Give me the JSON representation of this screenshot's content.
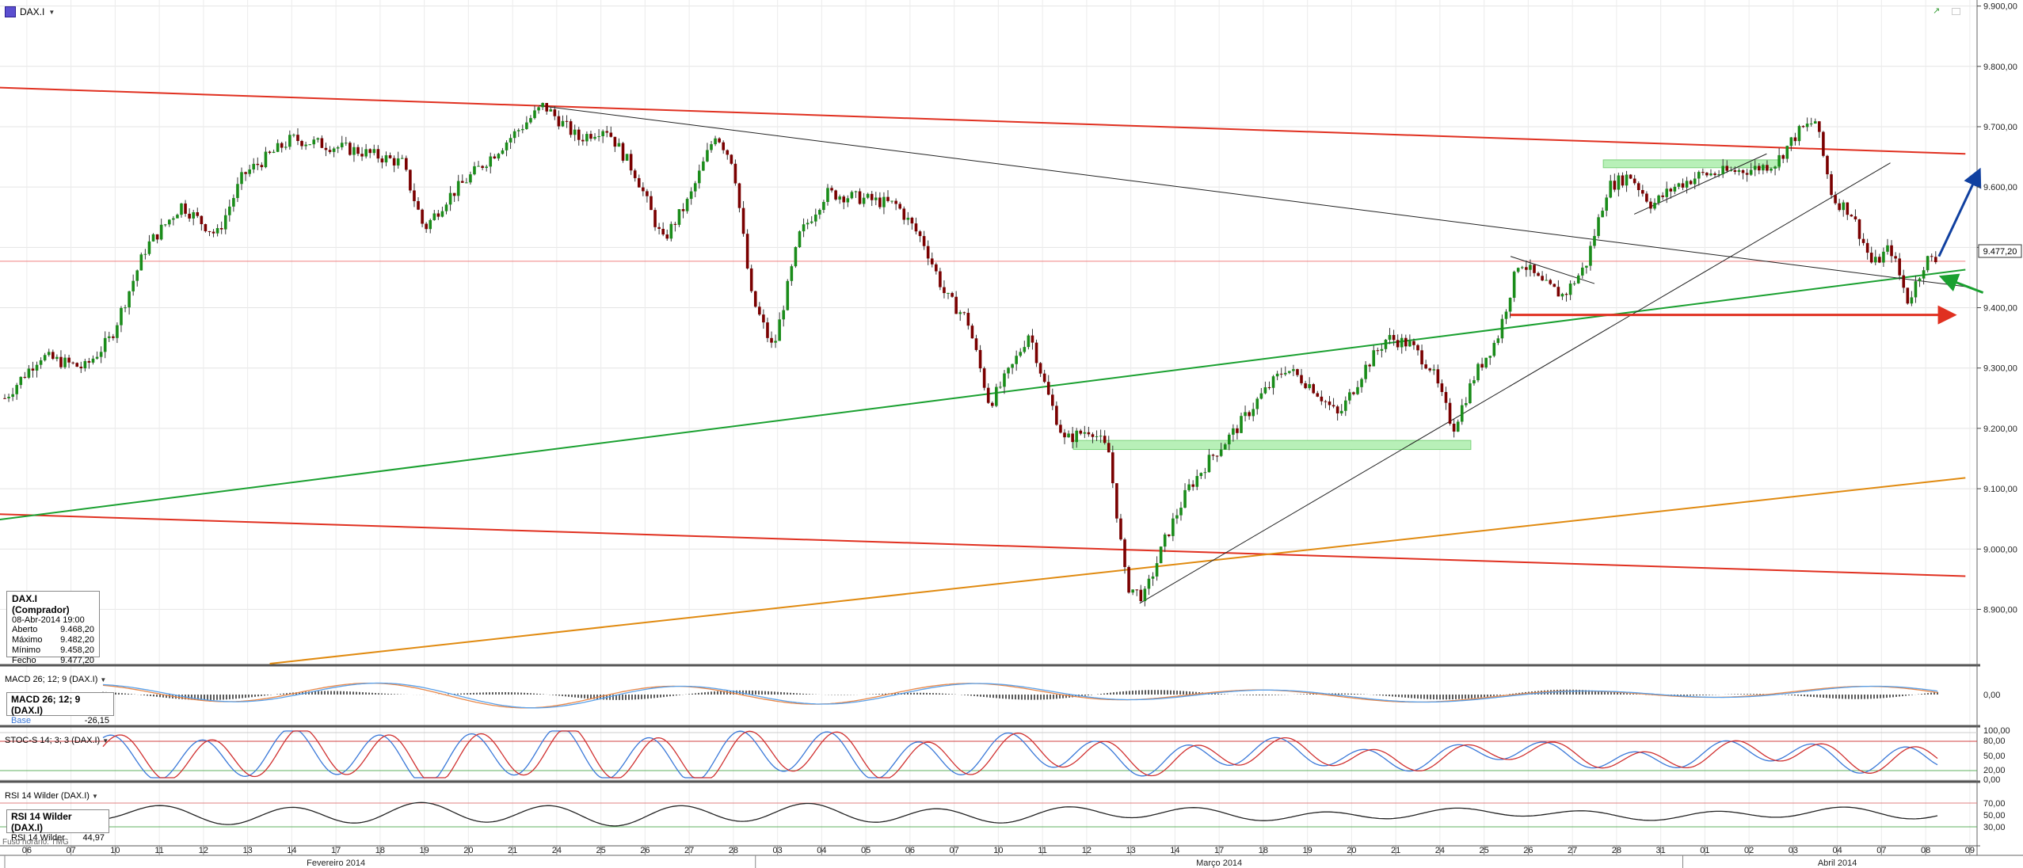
{
  "header": {
    "symbol": "DAX.I"
  },
  "info": {
    "title": "DAX.I (Comprador)",
    "datetime": "08-Abr-2014 19:00",
    "rows": [
      {
        "label": "Aberto",
        "value": "9.468,20"
      },
      {
        "label": "Máximo",
        "value": "9.482,20"
      },
      {
        "label": "Mínimo",
        "value": "9.458,20"
      },
      {
        "label": "Fecho",
        "value": "9.477,20"
      }
    ]
  },
  "timezone": "Fuso horário: TMG",
  "colors": {
    "up": "#1a8c1a",
    "down": "#7a0000",
    "red": "#e03020",
    "green": "#1aa030",
    "orange": "#e08a10",
    "blue": "#1040a0",
    "zone": "#b8f0b8"
  },
  "panes": {
    "macd": {
      "label": "MACD 26; 12; 9 (DAX.I)",
      "legend_title": "MACD 26; 12; 9 (DAX.I)",
      "legend_sub": "Base",
      "legend_value": "-26,15",
      "ticks": [
        "0,00"
      ]
    },
    "stoch": {
      "label": "STOC-S 14; 3; 3 (DAX.I)",
      "ticks": [
        "100,00",
        "80,00",
        "50,00",
        "20,00",
        "0,00"
      ]
    },
    "rsi": {
      "label": "RSI 14 Wilder (DAX.I)",
      "legend_title": "RSI 14 Wilder (DAX.I)",
      "legend_row_label": "RSI 14 Wilder",
      "legend_value": "44,97",
      "ticks": [
        "70,00",
        "50,00",
        "30,00"
      ]
    }
  },
  "chart_data": {
    "type": "candlestick",
    "title": "DAX.I",
    "interval": "hourly",
    "last_value": 9477.2,
    "last_value_label": "9.477,20",
    "ylim": [
      8810,
      9910
    ],
    "y_ticks": [
      8900,
      9000,
      9100,
      9200,
      9300,
      9400,
      9500,
      9600,
      9700,
      9800,
      9900
    ],
    "y_tick_labels": [
      "8.900,00",
      "9.000,00",
      "9.100,00",
      "9.200,00",
      "9.300,00",
      "9.400,00",
      "9.500,00",
      "9.600,00",
      "9.700,00",
      "9.800,00",
      "9.900,00"
    ],
    "x_labels": [
      "06",
      "07",
      "10",
      "11",
      "12",
      "13",
      "14",
      "17",
      "18",
      "19",
      "20",
      "21",
      "24",
      "25",
      "26",
      "27",
      "28",
      "03",
      "04",
      "05",
      "06",
      "07",
      "10",
      "11",
      "12",
      "13",
      "14",
      "17",
      "18",
      "19",
      "20",
      "21",
      "24",
      "25",
      "26",
      "27",
      "28",
      "31",
      "01",
      "02",
      "03",
      "04",
      "07",
      "08",
      "09"
    ],
    "months": [
      "Fevereiro 2014",
      "Março 2014",
      "Abril 2014"
    ],
    "path_anchors": [
      {
        "day": 0,
        "v": 9250
      },
      {
        "day": 0.8,
        "v": 9320
      },
      {
        "day": 1.8,
        "v": 9300
      },
      {
        "day": 2.4,
        "v": 9350
      },
      {
        "day": 3.2,
        "v": 9500
      },
      {
        "day": 4,
        "v": 9570
      },
      {
        "day": 4.8,
        "v": 9520
      },
      {
        "day": 5.4,
        "v": 9620
      },
      {
        "day": 6.5,
        "v": 9680
      },
      {
        "day": 8,
        "v": 9660
      },
      {
        "day": 9,
        "v": 9640
      },
      {
        "day": 9.5,
        "v": 9530
      },
      {
        "day": 10,
        "v": 9580
      },
      {
        "day": 11,
        "v": 9650
      },
      {
        "day": 12.2,
        "v": 9735
      },
      {
        "day": 13,
        "v": 9680
      },
      {
        "day": 13.6,
        "v": 9700
      },
      {
        "day": 14.3,
        "v": 9620
      },
      {
        "day": 14.9,
        "v": 9510
      },
      {
        "day": 15.5,
        "v": 9580
      },
      {
        "day": 16.1,
        "v": 9690
      },
      {
        "day": 16.5,
        "v": 9640
      },
      {
        "day": 16.9,
        "v": 9420
      },
      {
        "day": 17.4,
        "v": 9330
      },
      {
        "day": 18,
        "v": 9520
      },
      {
        "day": 18.6,
        "v": 9590
      },
      {
        "day": 19.5,
        "v": 9580
      },
      {
        "day": 20.2,
        "v": 9570
      },
      {
        "day": 20.8,
        "v": 9510
      },
      {
        "day": 21.3,
        "v": 9420
      },
      {
        "day": 21.8,
        "v": 9380
      },
      {
        "day": 22.3,
        "v": 9240
      },
      {
        "day": 22.8,
        "v": 9300
      },
      {
        "day": 23.2,
        "v": 9360
      },
      {
        "day": 23.6,
        "v": 9260
      },
      {
        "day": 24,
        "v": 9180
      },
      {
        "day": 24.6,
        "v": 9200
      },
      {
        "day": 25,
        "v": 9160
      },
      {
        "day": 25.4,
        "v": 8940
      },
      {
        "day": 25.8,
        "v": 8920
      },
      {
        "day": 26.3,
        "v": 9020
      },
      {
        "day": 26.8,
        "v": 9100
      },
      {
        "day": 27.3,
        "v": 9150
      },
      {
        "day": 27.9,
        "v": 9200
      },
      {
        "day": 28.4,
        "v": 9250
      },
      {
        "day": 29,
        "v": 9300
      },
      {
        "day": 29.6,
        "v": 9270
      },
      {
        "day": 30.2,
        "v": 9220
      },
      {
        "day": 30.8,
        "v": 9300
      },
      {
        "day": 31.3,
        "v": 9350
      },
      {
        "day": 31.8,
        "v": 9340
      },
      {
        "day": 32.3,
        "v": 9300
      },
      {
        "day": 32.8,
        "v": 9200
      },
      {
        "day": 33.3,
        "v": 9290
      },
      {
        "day": 33.8,
        "v": 9350
      },
      {
        "day": 34.3,
        "v": 9480
      },
      {
        "day": 34.8,
        "v": 9440
      },
      {
        "day": 35.3,
        "v": 9420
      },
      {
        "day": 35.8,
        "v": 9470
      },
      {
        "day": 36.3,
        "v": 9600
      },
      {
        "day": 36.8,
        "v": 9620
      },
      {
        "day": 37.3,
        "v": 9570
      },
      {
        "day": 37.8,
        "v": 9600
      },
      {
        "day": 38.4,
        "v": 9620
      },
      {
        "day": 39,
        "v": 9625
      },
      {
        "day": 39.6,
        "v": 9630
      },
      {
        "day": 40.1,
        "v": 9640
      },
      {
        "day": 40.6,
        "v": 9690
      },
      {
        "day": 41,
        "v": 9710
      },
      {
        "day": 41.4,
        "v": 9580
      },
      {
        "day": 41.8,
        "v": 9560
      },
      {
        "day": 42.3,
        "v": 9470
      },
      {
        "day": 42.7,
        "v": 9500
      },
      {
        "day": 43.1,
        "v": 9410
      },
      {
        "day": 43.5,
        "v": 9480
      },
      {
        "day": 43.8,
        "v": 9477
      }
    ],
    "lines": [
      {
        "name": "upper-channel-top",
        "color": "red",
        "p1": {
          "day": -0.2,
          "v": 9765
        },
        "p2": {
          "day": 44.4,
          "v": 9655
        }
      },
      {
        "name": "lower-channel-bottom",
        "color": "red",
        "p1": {
          "day": -0.2,
          "v": 9058
        },
        "p2": {
          "day": 44.4,
          "v": 8955
        }
      },
      {
        "name": "rising-support",
        "color": "green",
        "p1": {
          "day": -0.2,
          "v": 9048
        },
        "p2": {
          "day": 44.4,
          "v": 9463
        }
      },
      {
        "name": "long-support",
        "color": "orange",
        "p1": {
          "day": 6,
          "v": 8810
        },
        "p2": {
          "day": 44.4,
          "v": 9118
        }
      },
      {
        "name": "horizontal-resistance",
        "color": "red",
        "p1": {
          "day": -0.2,
          "v": 9477
        },
        "p2": {
          "day": 44.4,
          "v": 9477
        },
        "thin": true
      },
      {
        "name": "downtrend",
        "color": "black",
        "p1": {
          "day": 12.1,
          "v": 9735
        },
        "p2": {
          "day": 44.4,
          "v": 9435
        }
      },
      {
        "name": "uptrend",
        "color": "black",
        "p1": {
          "day": 25.7,
          "v": 8910
        },
        "p2": {
          "day": 42.7,
          "v": 9640
        }
      },
      {
        "name": "short-wedge",
        "color": "black",
        "p1": {
          "day": 36.9,
          "v": 9555
        },
        "p2": {
          "day": 39.9,
          "v": 9655
        }
      },
      {
        "name": "wedge-top",
        "color": "black",
        "p1": {
          "day": 34.1,
          "v": 9485
        },
        "p2": {
          "day": 36,
          "v": 9440
        }
      }
    ],
    "zones": [
      {
        "from_day": 24.2,
        "to_day": 33.2,
        "v_top": 9180,
        "v_bottom": 9165
      },
      {
        "from_day": 36.2,
        "to_day": 40.2,
        "v_top": 9645,
        "v_bottom": 9632
      }
    ],
    "arrows": [
      {
        "name": "target-up",
        "color": "blue",
        "from": {
          "day": 43.8,
          "v": 9485
        },
        "to": {
          "day": 44.7,
          "v": 9625
        }
      },
      {
        "name": "support-level",
        "color": "red",
        "from": {
          "day": 34.1,
          "v": 9388
        },
        "to": {
          "day": 44.1,
          "v": 9388
        }
      },
      {
        "name": "retest",
        "color": "green",
        "from": {
          "day": 44.8,
          "v": 9425
        },
        "to": {
          "day": 43.9,
          "v": 9450
        }
      }
    ]
  }
}
